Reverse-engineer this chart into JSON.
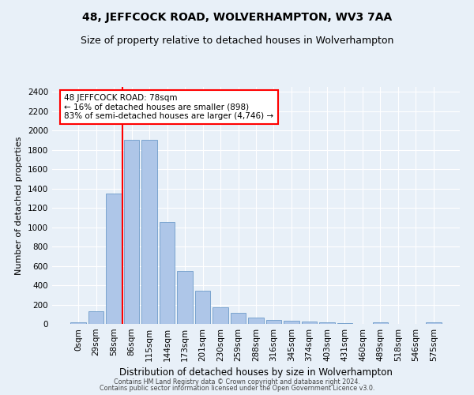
{
  "title": "48, JEFFCOCK ROAD, WOLVERHAMPTON, WV3 7AA",
  "subtitle": "Size of property relative to detached houses in Wolverhampton",
  "xlabel": "Distribution of detached houses by size in Wolverhampton",
  "ylabel": "Number of detached properties",
  "footer1": "Contains HM Land Registry data © Crown copyright and database right 2024.",
  "footer2": "Contains public sector information licensed under the Open Government Licence v3.0.",
  "categories": [
    "0sqm",
    "29sqm",
    "58sqm",
    "86sqm",
    "115sqm",
    "144sqm",
    "173sqm",
    "201sqm",
    "230sqm",
    "259sqm",
    "288sqm",
    "316sqm",
    "345sqm",
    "374sqm",
    "403sqm",
    "431sqm",
    "460sqm",
    "489sqm",
    "518sqm",
    "546sqm",
    "575sqm"
  ],
  "values": [
    15,
    130,
    1350,
    1900,
    1900,
    1050,
    545,
    340,
    175,
    115,
    65,
    40,
    30,
    25,
    20,
    10,
    0,
    20,
    0,
    0,
    15
  ],
  "bar_color": "#aec6e8",
  "bar_edge_color": "#5a8fc2",
  "vline_x": 2.5,
  "vline_color": "red",
  "annotation_text": "48 JEFFCOCK ROAD: 78sqm\n← 16% of detached houses are smaller (898)\n83% of semi-detached houses are larger (4,746) →",
  "annotation_box_color": "white",
  "annotation_box_edge_color": "red",
  "ylim": [
    0,
    2450
  ],
  "yticks": [
    0,
    200,
    400,
    600,
    800,
    1000,
    1200,
    1400,
    1600,
    1800,
    2000,
    2200,
    2400
  ],
  "bg_color": "#e8f0f8",
  "plot_bg_color": "#e8f0f8",
  "grid_color": "white",
  "title_fontsize": 10,
  "subtitle_fontsize": 9,
  "ylabel_fontsize": 8,
  "xlabel_fontsize": 8.5,
  "tick_fontsize": 7.5,
  "footer_fontsize": 5.8,
  "annotation_fontsize": 7.5
}
